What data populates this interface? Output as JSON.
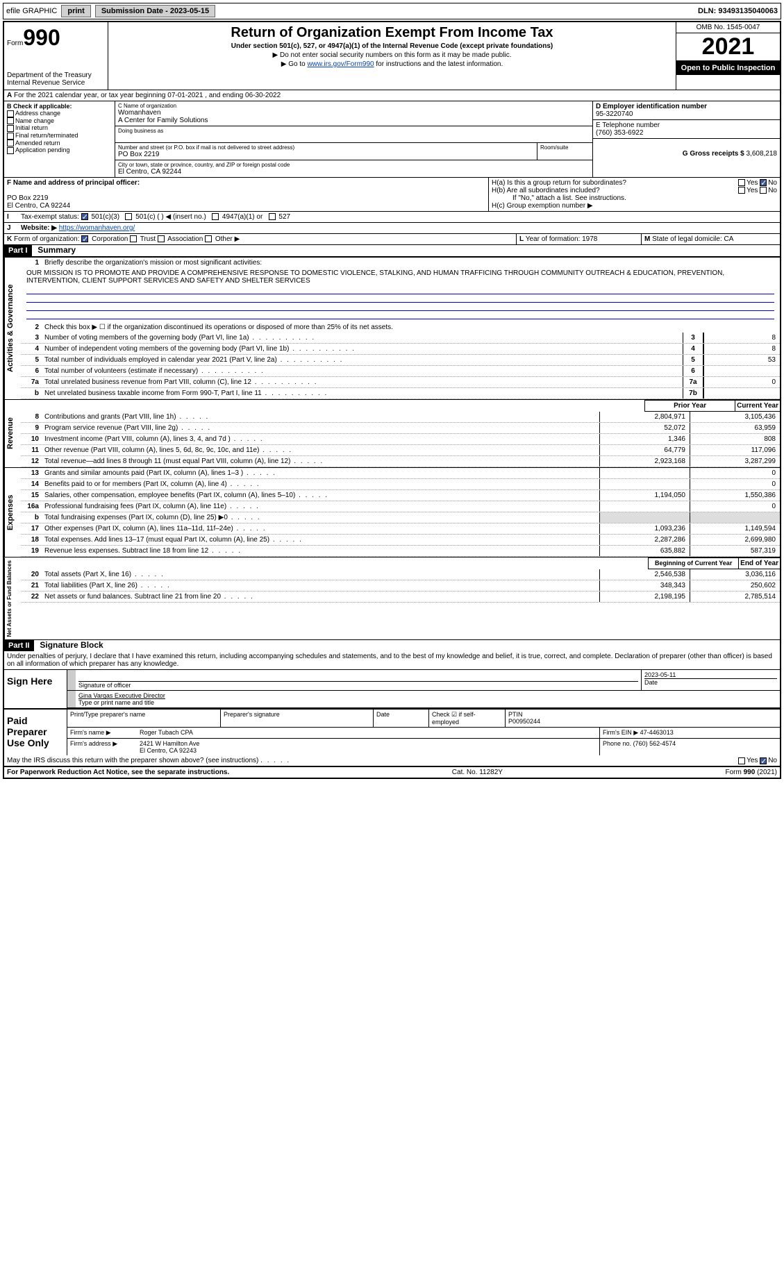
{
  "topbar": {
    "efile": "efile GRAPHIC",
    "print": "print",
    "sub_label": "Submission Date - 2023-05-15",
    "dln": "DLN: 93493135040063"
  },
  "header": {
    "form_prefix": "Form",
    "form_num": "990",
    "dept": "Department of the Treasury",
    "irs": "Internal Revenue Service",
    "title": "Return of Organization Exempt From Income Tax",
    "subtitle": "Under section 501(c), 527, or 4947(a)(1) of the Internal Revenue Code (except private foundations)",
    "note1": "▶ Do not enter social security numbers on this form as it may be made public.",
    "note2_pre": "▶ Go to ",
    "note2_link": "www.irs.gov/Form990",
    "note2_post": " for instructions and the latest information.",
    "omb": "OMB No. 1545-0047",
    "year": "2021",
    "open": "Open to Public Inspection"
  },
  "A": {
    "line": "For the 2021 calendar year, or tax year beginning 07-01-2021   , and ending 06-30-2022"
  },
  "B": {
    "label": "B Check if applicable:",
    "opts": [
      "Address change",
      "Name change",
      "Initial return",
      "Final return/terminated",
      "Amended return",
      "Application pending"
    ]
  },
  "C": {
    "name_lbl": "C Name of organization",
    "name1": "Womanhaven",
    "name2": "A Center for Family Solutions",
    "dba_lbl": "Doing business as",
    "street_lbl": "Number and street (or P.O. box if mail is not delivered to street address)",
    "room_lbl": "Room/suite",
    "street": "PO Box 2219",
    "city_lbl": "City or town, state or province, country, and ZIP or foreign postal code",
    "city": "El Centro, CA  92244"
  },
  "D": {
    "lbl": "D Employer identification number",
    "val": "95-3220740"
  },
  "E": {
    "lbl": "E Telephone number",
    "val": "(760) 353-6922"
  },
  "G": {
    "lbl": "G Gross receipts $",
    "val": "3,608,218"
  },
  "F": {
    "lbl": "F  Name and address of principal officer:",
    "line1": "PO Box 2219",
    "line2": "El Centro, CA  92244"
  },
  "H": {
    "a": "H(a)  Is this a group return for subordinates?",
    "b": "H(b)  Are all subordinates included?",
    "note": "If \"No,\" attach a list. See instructions.",
    "c": "H(c)  Group exemption number ▶",
    "yes": "Yes",
    "no": "No"
  },
  "I": {
    "lbl": "Tax-exempt status:",
    "o1": "501(c)(3)",
    "o2": "501(c) (  ) ◀ (insert no.)",
    "o3": "4947(a)(1) or",
    "o4": "527"
  },
  "J": {
    "lbl": "Website: ▶",
    "val": "https://womanhaven.org/"
  },
  "K": {
    "lbl": "Form of organization:",
    "o1": "Corporation",
    "o2": "Trust",
    "o3": "Association",
    "o4": "Other ▶"
  },
  "L": {
    "lbl": "Year of formation:",
    "val": "1978"
  },
  "M": {
    "lbl": "State of legal domicile:",
    "val": "CA"
  },
  "part1": {
    "bar": "Part I",
    "title": "Summary"
  },
  "summary": {
    "q1": "Briefly describe the organization's mission or most significant activities:",
    "mission": "OUR MISSION IS TO PROMOTE AND PROVIDE A COMPREHENSIVE RESPONSE TO DOMESTIC VIOLENCE, STALKING, AND HUMAN TRAFFICING THROUGH COMMUNITY OUTREACH & EDUCATION, PREVENTION, INTERVENTION, CLIENT SUPPORT SERVICES AND SAFETY AND SHELTER SERVICES",
    "q2": "Check this box ▶ ☐  if the organization discontinued its operations or disposed of more than 25% of its net assets.",
    "lines_single": [
      {
        "n": "3",
        "t": "Number of voting members of the governing body (Part VI, line 1a)",
        "box": "3",
        "v": "8"
      },
      {
        "n": "4",
        "t": "Number of independent voting members of the governing body (Part VI, line 1b)",
        "box": "4",
        "v": "8"
      },
      {
        "n": "5",
        "t": "Total number of individuals employed in calendar year 2021 (Part V, line 2a)",
        "box": "5",
        "v": "53"
      },
      {
        "n": "6",
        "t": "Total number of volunteers (estimate if necessary)",
        "box": "6",
        "v": ""
      },
      {
        "n": "7a",
        "t": "Total unrelated business revenue from Part VIII, column (C), line 12",
        "box": "7a",
        "v": "0"
      },
      {
        "n": "b",
        "t": "Net unrelated business taxable income from Form 990-T, Part I, line 11",
        "box": "7b",
        "v": ""
      }
    ],
    "col_prior": "Prior Year",
    "col_curr": "Current Year",
    "revenue": [
      {
        "n": "8",
        "t": "Contributions and grants (Part VIII, line 1h)",
        "p": "2,804,971",
        "c": "3,105,436"
      },
      {
        "n": "9",
        "t": "Program service revenue (Part VIII, line 2g)",
        "p": "52,072",
        "c": "63,959"
      },
      {
        "n": "10",
        "t": "Investment income (Part VIII, column (A), lines 3, 4, and 7d )",
        "p": "1,346",
        "c": "808"
      },
      {
        "n": "11",
        "t": "Other revenue (Part VIII, column (A), lines 5, 6d, 8c, 9c, 10c, and 11e)",
        "p": "64,779",
        "c": "117,096"
      },
      {
        "n": "12",
        "t": "Total revenue—add lines 8 through 11 (must equal Part VIII, column (A), line 12)",
        "p": "2,923,168",
        "c": "3,287,299"
      }
    ],
    "expenses": [
      {
        "n": "13",
        "t": "Grants and similar amounts paid (Part IX, column (A), lines 1–3 )",
        "p": "",
        "c": "0"
      },
      {
        "n": "14",
        "t": "Benefits paid to or for members (Part IX, column (A), line 4)",
        "p": "",
        "c": "0"
      },
      {
        "n": "15",
        "t": "Salaries, other compensation, employee benefits (Part IX, column (A), lines 5–10)",
        "p": "1,194,050",
        "c": "1,550,386"
      },
      {
        "n": "16a",
        "t": "Professional fundraising fees (Part IX, column (A), line 11e)",
        "p": "",
        "c": "0"
      },
      {
        "n": "b",
        "t": "Total fundraising expenses (Part IX, column (D), line 25) ▶0",
        "p": "",
        "c": "",
        "shaded": true
      },
      {
        "n": "17",
        "t": "Other expenses (Part IX, column (A), lines 11a–11d, 11f–24e)",
        "p": "1,093,236",
        "c": "1,149,594"
      },
      {
        "n": "18",
        "t": "Total expenses. Add lines 13–17 (must equal Part IX, column (A), line 25)",
        "p": "2,287,286",
        "c": "2,699,980"
      },
      {
        "n": "19",
        "t": "Revenue less expenses. Subtract line 18 from line 12",
        "p": "635,882",
        "c": "587,319"
      }
    ],
    "col_begin": "Beginning of Current Year",
    "col_end": "End of Year",
    "netassets": [
      {
        "n": "20",
        "t": "Total assets (Part X, line 16)",
        "p": "2,546,538",
        "c": "3,036,116"
      },
      {
        "n": "21",
        "t": "Total liabilities (Part X, line 26)",
        "p": "348,343",
        "c": "250,602"
      },
      {
        "n": "22",
        "t": "Net assets or fund balances. Subtract line 21 from line 20",
        "p": "2,198,195",
        "c": "2,785,514"
      }
    ],
    "vlabels": {
      "ag": "Activities & Governance",
      "rev": "Revenue",
      "exp": "Expenses",
      "na": "Net Assets or Fund Balances"
    }
  },
  "part2": {
    "bar": "Part II",
    "title": "Signature Block"
  },
  "sig": {
    "decl": "Under penalties of perjury, I declare that I have examined this return, including accompanying schedules and statements, and to the best of my knowledge and belief, it is true, correct, and complete. Declaration of preparer (other than officer) is based on all information of which preparer has any knowledge.",
    "sign_here": "Sign Here",
    "sig_officer": "Signature of officer",
    "date_lbl": "Date",
    "date": "2023-05-11",
    "name": "Gina Vargas  Executive Director",
    "name_lbl": "Type or print name and title",
    "paid": "Paid Preparer Use Only",
    "pt_name_lbl": "Print/Type preparer's name",
    "pt_sig_lbl": "Preparer's signature",
    "pt_date_lbl": "Date",
    "pt_check_lbl": "Check ☑ if self-employed",
    "ptin_lbl": "PTIN",
    "ptin": "P00950244",
    "firm_name_lbl": "Firm's name   ▶",
    "firm_name": "Roger Tubach CPA",
    "firm_ein_lbl": "Firm's EIN ▶",
    "firm_ein": "47-4463013",
    "firm_addr_lbl": "Firm's address ▶",
    "firm_addr1": "2421 W Hamilton Ave",
    "firm_addr2": "El Centro, CA  92243",
    "phone_lbl": "Phone no.",
    "phone": "(760) 562-4574",
    "may": "May the IRS discuss this return with the preparer shown above? (see instructions)"
  },
  "footer": {
    "left": "For Paperwork Reduction Act Notice, see the separate instructions.",
    "mid": "Cat. No. 11282Y",
    "right": "Form 990 (2021)"
  }
}
